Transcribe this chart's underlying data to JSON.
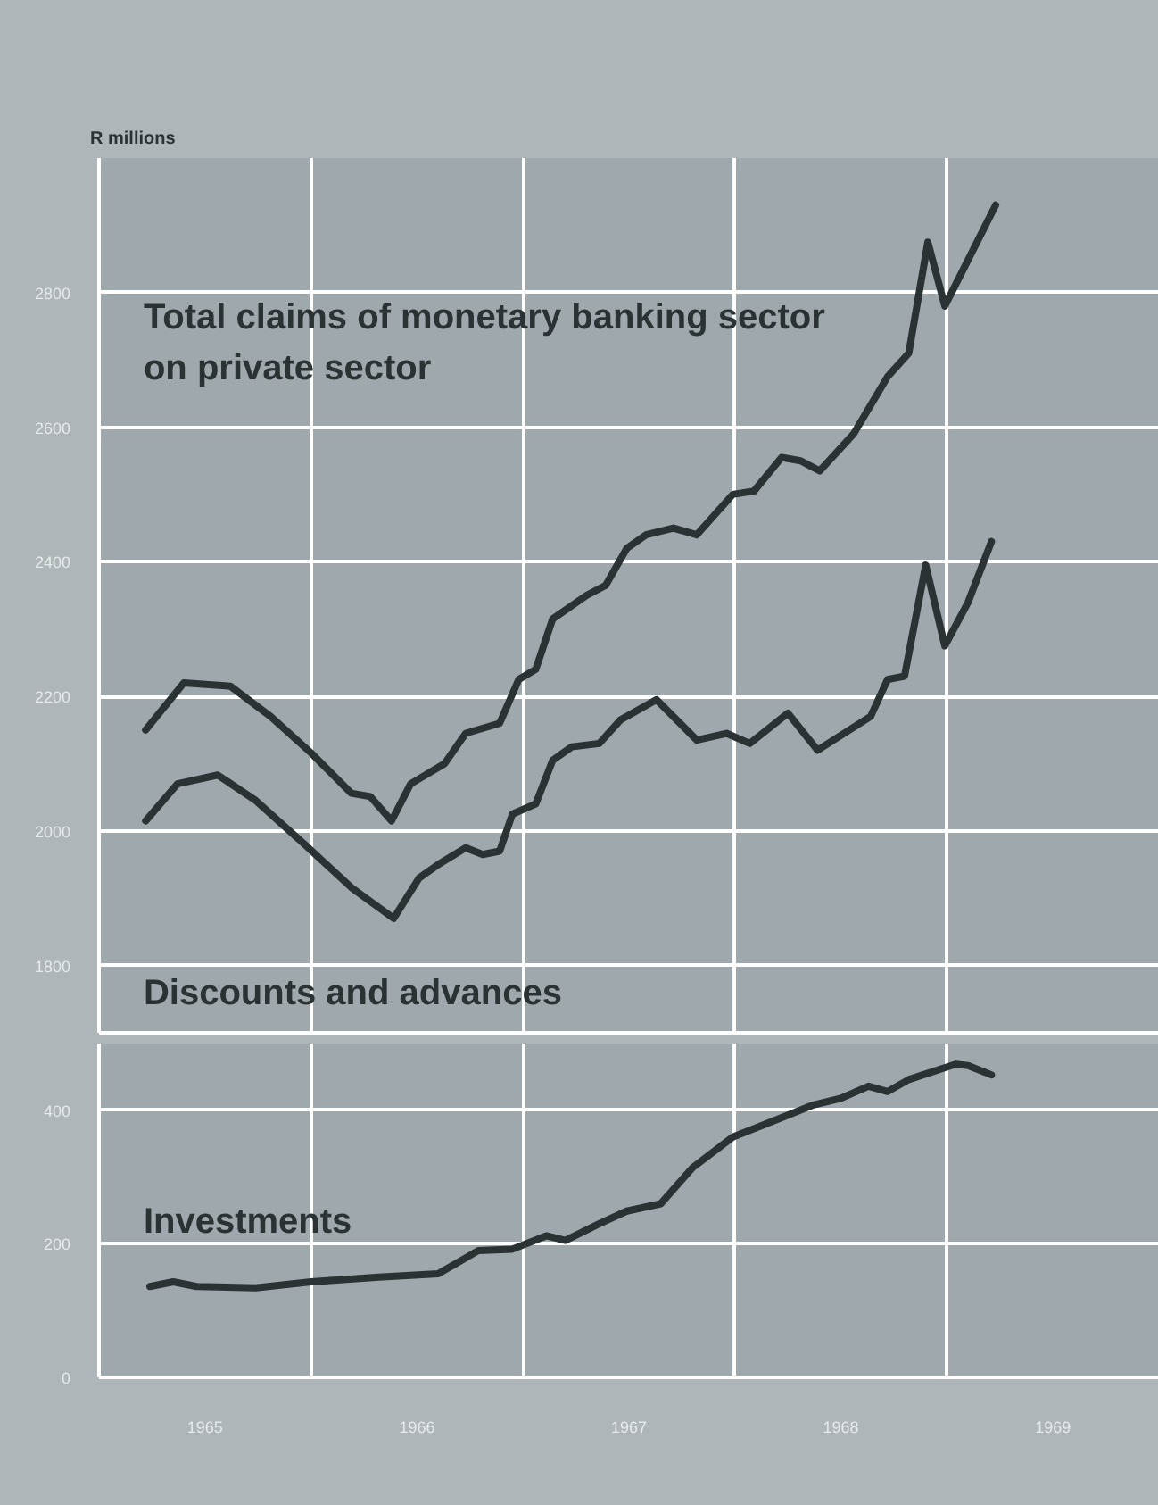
{
  "chart_data": [
    {
      "type": "line",
      "title": "R millions",
      "xlim": [
        1965,
        1970
      ],
      "xticks": [
        {
          "value": 1966,
          "label": null
        },
        {
          "value": 1967,
          "label": null
        },
        {
          "value": 1968,
          "label": null
        },
        {
          "value": 1969,
          "label": null
        }
      ],
      "ylim": [
        1700,
        3000
      ],
      "yticks": [
        1800,
        2000,
        2200,
        2400,
        2600,
        2800
      ],
      "grid": true,
      "tick_labels": "y",
      "series": [
        {
          "name": "Total claims of monetary banking sector on private sector",
          "color": "#2b3234",
          "x": [
            1965.22,
            1965.4,
            1965.62,
            1965.81,
            1966.0,
            1966.19,
            1966.28,
            1966.38,
            1966.47,
            1966.63,
            1966.73,
            1966.89,
            1966.98,
            1967.06,
            1967.14,
            1967.3,
            1967.39,
            1967.49,
            1967.58,
            1967.71,
            1967.82,
            1967.99,
            1968.09,
            1968.22,
            1968.31,
            1968.4,
            1968.56,
            1968.72,
            1968.82,
            1968.91,
            1968.99,
            1969.23
          ],
          "values": [
            2150,
            2220,
            2215,
            2170,
            2116,
            2056,
            2051,
            2015,
            2070,
            2100,
            2145,
            2160,
            2225,
            2240,
            2315,
            2350,
            2365,
            2420,
            2440,
            2450,
            2440,
            2500,
            2505,
            2555,
            2550,
            2535,
            2590,
            2675,
            2710,
            2875,
            2780,
            2930
          ]
        },
        {
          "name": "Discounts and advances",
          "color": "#2b3234",
          "x": [
            1965.22,
            1965.37,
            1965.56,
            1965.74,
            1965.97,
            1966.19,
            1966.39,
            1966.51,
            1966.6,
            1966.73,
            1966.81,
            1966.89,
            1966.95,
            1967.06,
            1967.14,
            1967.23,
            1967.36,
            1967.46,
            1967.63,
            1967.82,
            1967.96,
            1968.07,
            1968.25,
            1968.39,
            1968.64,
            1968.72,
            1968.8,
            1968.9,
            1968.99,
            1969.1,
            1969.21
          ],
          "values": [
            2015,
            2070,
            2083,
            2045,
            1980,
            1916,
            1870,
            1930,
            1950,
            1975,
            1965,
            1970,
            2025,
            2040,
            2105,
            2125,
            2130,
            2165,
            2195,
            2135,
            2145,
            2130,
            2175,
            2120,
            2170,
            2225,
            2230,
            2395,
            2275,
            2340,
            2430
          ]
        }
      ]
    },
    {
      "type": "line",
      "xlim": [
        1965,
        1970
      ],
      "xticks": [
        {
          "value": 1965.5,
          "label": "1965"
        },
        {
          "value": 1966,
          "label": null
        },
        {
          "value": 1966.5,
          "label": "1966"
        },
        {
          "value": 1967,
          "label": null
        },
        {
          "value": 1967.5,
          "label": "1967"
        },
        {
          "value": 1968,
          "label": null
        },
        {
          "value": 1968.5,
          "label": "1968"
        },
        {
          "value": 1969,
          "label": null
        },
        {
          "value": 1969.5,
          "label": "1969"
        }
      ],
      "ylim": [
        0,
        500
      ],
      "yticks": [
        0,
        200,
        400
      ],
      "grid": true,
      "series": [
        {
          "name": "Investments",
          "color": "#2b3234",
          "x": [
            1965.24,
            1965.35,
            1965.46,
            1965.74,
            1966.0,
            1966.32,
            1966.6,
            1966.79,
            1966.95,
            1967.11,
            1967.2,
            1967.36,
            1967.49,
            1967.65,
            1967.8,
            1967.99,
            1968.15,
            1968.37,
            1968.5,
            1968.63,
            1968.72,
            1968.82,
            1969.04,
            1969.1,
            1969.21
          ],
          "values": [
            136,
            143,
            136,
            134,
            143,
            150,
            155,
            190,
            192,
            212,
            205,
            230,
            249,
            260,
            314,
            360,
            380,
            408,
            418,
            436,
            428,
            446,
            469,
            467,
            453
          ]
        }
      ]
    }
  ]
}
